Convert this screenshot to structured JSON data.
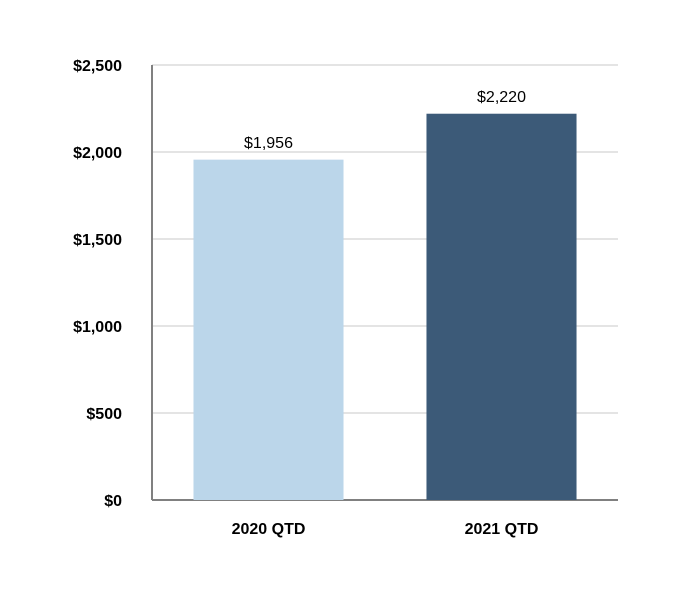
{
  "chart_data": {
    "type": "bar",
    "categories": [
      "2020 QTD",
      "2021 QTD"
    ],
    "values": [
      1956,
      2220
    ],
    "value_labels": [
      "$1,956",
      "$2,220"
    ],
    "colors": [
      "#bbd6ea",
      "#3c5a78"
    ],
    "ylim": [
      0,
      2500
    ],
    "yticks": [
      {
        "value": 0,
        "label": "$0"
      },
      {
        "value": 500,
        "label": "$500"
      },
      {
        "value": 1000,
        "label": "$1,000"
      },
      {
        "value": 1500,
        "label": "$1,500"
      },
      {
        "value": 2000,
        "label": "$2,000"
      },
      {
        "value": 2500,
        "label": "$2,500"
      }
    ],
    "grid": true
  }
}
